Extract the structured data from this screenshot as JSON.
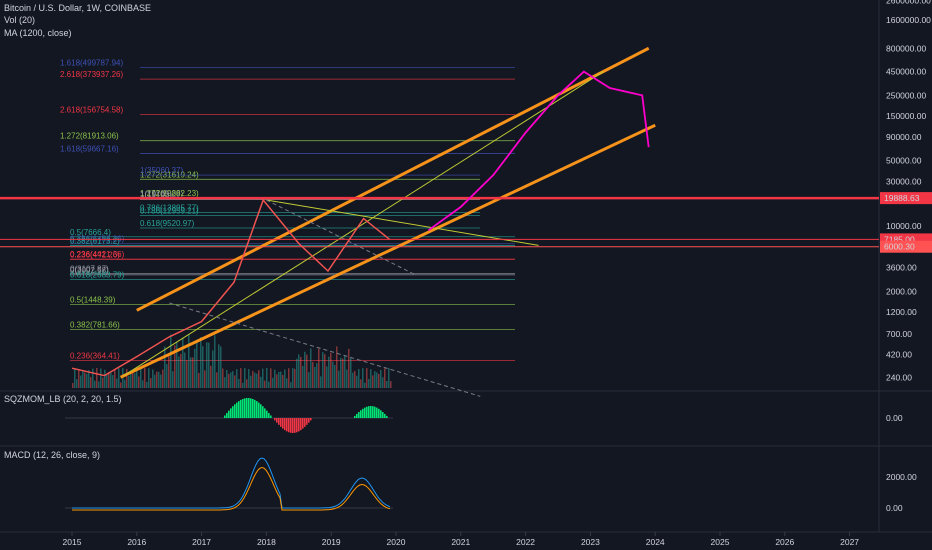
{
  "header": {
    "symbol": "Bitcoin / U.S. Dollar, 1W, COINBASE",
    "vol": "Vol (20)",
    "ma": "MA (1200, close)"
  },
  "panes": {
    "sqzmom_label": "SQZMOM_LB (20, 2, 20, 1.5)",
    "macd_label": "MACD (12, 26, close, 9)"
  },
  "colors": {
    "background": "#131722",
    "channel": "#f7931a",
    "projection": "#ff00cc",
    "price_badge_19888": "#f23645",
    "price_badge_7185": "#f23645",
    "price_badge_6000": "#ff5252",
    "fib_blue": "#3f51b5",
    "fib_red": "#f23645",
    "fib_green": "#8bc34a",
    "fib_teal": "#26a69a"
  },
  "chart_data": [
    {
      "type": "line",
      "title": "Bitcoin / U.S. Dollar, 1W, COINBASE",
      "scale": "log",
      "x_axis_labels": [
        "2015",
        "2016",
        "2017",
        "2018",
        "2019",
        "2020",
        "2021",
        "2022",
        "2023",
        "2024",
        "2025",
        "2026",
        "2027"
      ],
      "y_axis_labels": [
        "2600000.00",
        "1600000.00",
        "800000.00",
        "450000.00",
        "250000.00",
        "150000.00",
        "90000.00",
        "50000.00",
        "30000.00",
        "10000.00",
        "3600.00",
        "2000.00",
        "1200.00",
        "700.00",
        "420.00",
        "240.00"
      ],
      "price_badges": [
        "19888.63",
        "7185.00",
        "6000.30"
      ],
      "fib_labels": [
        {
          "text": "1.618(499787.94)",
          "color": "blue"
        },
        {
          "text": "2.618(373937.26)",
          "color": "red"
        },
        {
          "text": "2.618(156754.58)",
          "color": "red"
        },
        {
          "text": "1.272(81913.06)",
          "color": "green"
        },
        {
          "text": "1.618(59667.16)",
          "color": "blue"
        },
        {
          "text": "1.272(31619.24)",
          "color": "green"
        },
        {
          "text": "1(35060.37)",
          "color": "blue"
        },
        {
          "text": "1(19765.29)",
          "color": "gray"
        },
        {
          "text": "1.272(19882.23)",
          "color": "green"
        },
        {
          "text": "1(19193)",
          "color": "gray"
        },
        {
          "text": "0.786(12959.21)",
          "color": "teal"
        },
        {
          "text": "0.786(13895.77)",
          "color": "teal"
        },
        {
          "text": "0.618(9520.97)",
          "color": "teal"
        },
        {
          "text": "0.5(7666.4)",
          "color": "teal"
        },
        {
          "text": "0.786(6458.26)",
          "color": "blue"
        },
        {
          "text": "0.382(6173.2)",
          "color": "teal"
        },
        {
          "text": "0.236(4?1.26)",
          "color": "red"
        },
        {
          "text": "0.236(4421.36)",
          "color": "red"
        },
        {
          "text": "0(3002.58)",
          "color": "gray"
        },
        {
          "text": "0(3107.87)",
          "color": "gray"
        },
        {
          "text": "0.618(2683.79)",
          "color": "teal"
        },
        {
          "text": "0.5(1448.39)",
          "color": "green"
        },
        {
          "text": "0.382(781.66)",
          "color": "green"
        },
        {
          "text": "0.236(364.41)",
          "color": "red"
        }
      ],
      "price_history_approx": [
        {
          "x": "2015.0",
          "y": 300
        },
        {
          "x": "2015.5",
          "y": 250
        },
        {
          "x": "2016.0",
          "y": 400
        },
        {
          "x": "2016.5",
          "y": 650
        },
        {
          "x": "2017.0",
          "y": 950
        },
        {
          "x": "2017.5",
          "y": 2500
        },
        {
          "x": "2017.95",
          "y": 19000
        },
        {
          "x": "2018.5",
          "y": 6500
        },
        {
          "x": "2018.95",
          "y": 3300
        },
        {
          "x": "2019.5",
          "y": 12000
        },
        {
          "x": "2019.9",
          "y": 7200
        }
      ],
      "projection_approx": [
        {
          "x": "2020.5",
          "y": 9000
        },
        {
          "x": "2021.0",
          "y": 16000
        },
        {
          "x": "2021.5",
          "y": 35000
        },
        {
          "x": "2022.0",
          "y": 100000
        },
        {
          "x": "2022.5",
          "y": 250000
        },
        {
          "x": "2022.9",
          "y": 450000
        },
        {
          "x": "2023.3",
          "y": 300000
        },
        {
          "x": "2023.8",
          "y": 250000
        },
        {
          "x": "2023.9",
          "y": 70000
        }
      ]
    },
    {
      "type": "bar",
      "title": "SQZMOM_LB (20, 2, 20, 1.5)",
      "y_axis_labels": [
        "0.00"
      ]
    },
    {
      "type": "line",
      "title": "MACD (12, 26, close, 9)",
      "y_axis_labels": [
        "2000.00",
        "0.00"
      ]
    }
  ]
}
